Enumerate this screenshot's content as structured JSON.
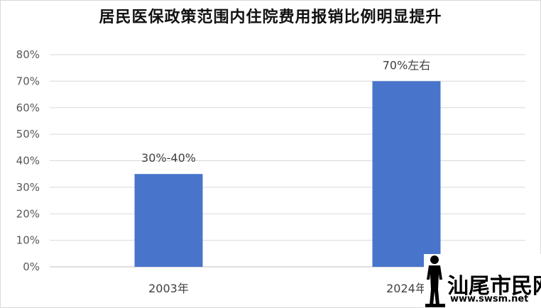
{
  "chart_data": {
    "type": "bar",
    "title": "居民医保政策范围内住院费用报销比例明显提升",
    "categories": [
      "2003年",
      "2024年"
    ],
    "values": [
      35,
      70
    ],
    "data_labels": [
      "30%-40%",
      "70%左右"
    ],
    "ylim": [
      0,
      80
    ],
    "y_ticks": [
      "0%",
      "10%",
      "20%",
      "30%",
      "40%",
      "50%",
      "60%",
      "70%",
      "80%"
    ],
    "grid": true,
    "bar_color": "#4874cb"
  },
  "watermark": {
    "text": "汕尾市民网",
    "url": "www.swsm.net"
  }
}
